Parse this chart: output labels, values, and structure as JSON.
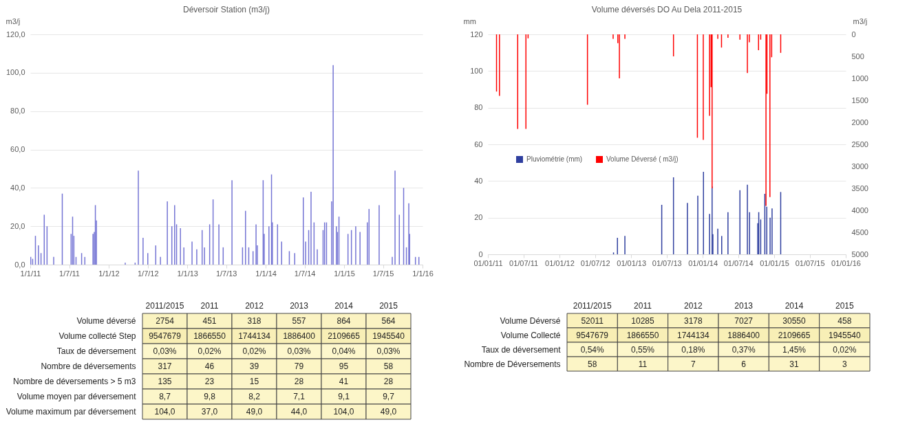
{
  "chart_data": [
    {
      "type": "bar",
      "title": "Déversoir Station (m3/j)",
      "ylabel": "m3/j",
      "grid": "y",
      "xlim": [
        "2011-01-01",
        "2016-01-01"
      ],
      "xticks": [
        {
          "value": "2011-01-01",
          "label": "1/1/11"
        },
        {
          "value": "2011-07-01",
          "label": "1/7/11"
        },
        {
          "value": "2012-01-01",
          "label": "1/1/12"
        },
        {
          "value": "2012-07-01",
          "label": "1/7/12"
        },
        {
          "value": "2013-01-01",
          "label": "1/1/13"
        },
        {
          "value": "2013-07-01",
          "label": "1/7/13"
        },
        {
          "value": "2014-01-01",
          "label": "1/1/14"
        },
        {
          "value": "2014-07-01",
          "label": "1/7/14"
        },
        {
          "value": "2015-01-01",
          "label": "1/1/15"
        },
        {
          "value": "2015-07-01",
          "label": "1/7/15"
        },
        {
          "value": "2016-01-01",
          "label": "1/1/16"
        }
      ],
      "ylim": [
        0,
        120
      ],
      "yticks": [
        {
          "value": 0,
          "label": "0,0"
        },
        {
          "value": 20,
          "label": "20,0"
        },
        {
          "value": 40,
          "label": "40,0"
        },
        {
          "value": 60,
          "label": "60,0"
        },
        {
          "value": 80,
          "label": "80,0"
        },
        {
          "value": 100,
          "label": "100,0"
        },
        {
          "value": 120,
          "label": "120,0"
        }
      ],
      "series": [
        {
          "color": "#7474d4",
          "x": [
            "2011-01-03",
            "2011-01-12",
            "2011-01-25",
            "2011-02-08",
            "2011-02-20",
            "2011-03-07",
            "2011-03-20",
            "2011-04-20",
            "2011-05-30",
            "2011-07-10",
            "2011-07-17",
            "2011-07-23",
            "2011-08-02",
            "2011-08-28",
            "2011-09-12",
            "2011-10-20",
            "2011-10-26",
            "2011-10-31",
            "2011-11-05",
            "2012-03-18",
            "2012-05-03",
            "2012-05-18",
            "2012-06-09",
            "2012-07-01",
            "2012-08-07",
            "2012-08-29",
            "2012-09-30",
            "2012-10-21",
            "2012-11-03",
            "2012-11-12",
            "2012-11-30",
            "2012-12-16",
            "2013-01-23",
            "2013-02-14",
            "2013-03-11",
            "2013-03-22",
            "2013-04-15",
            "2013-05-01",
            "2013-05-28",
            "2013-06-17",
            "2013-07-28",
            "2013-09-15",
            "2013-09-29",
            "2013-10-14",
            "2013-11-03",
            "2013-11-17",
            "2013-11-23",
            "2013-12-20",
            "2013-12-25",
            "2014-01-16",
            "2014-01-28",
            "2014-02-01",
            "2014-02-25",
            "2014-03-16",
            "2014-04-21",
            "2014-05-16",
            "2014-06-25",
            "2014-07-06",
            "2014-07-20",
            "2014-07-31",
            "2014-08-14",
            "2014-08-29",
            "2014-09-25",
            "2014-10-02",
            "2014-10-11",
            "2014-11-04",
            "2014-11-11",
            "2014-11-26",
            "2014-12-01",
            "2014-12-08",
            "2015-01-19",
            "2015-02-04",
            "2015-02-24",
            "2015-03-16",
            "2015-04-19",
            "2015-04-27",
            "2015-06-13",
            "2015-08-13",
            "2015-08-26",
            "2015-09-15",
            "2015-10-05",
            "2015-10-18",
            "2015-10-29",
            "2015-11-02",
            "2015-11-29",
            "2015-12-15"
          ],
          "values": [
            4,
            3,
            15,
            10,
            6,
            26,
            20,
            4,
            37,
            16,
            25,
            15,
            4,
            6,
            4,
            16,
            17,
            31,
            23,
            1,
            1,
            49,
            14,
            6,
            10,
            4,
            33,
            20,
            31,
            21,
            19,
            9,
            12,
            8,
            18,
            9,
            21,
            34,
            21,
            9,
            44,
            9,
            28,
            9,
            7,
            21,
            10,
            44,
            16,
            20,
            47,
            22,
            21,
            12,
            7,
            6,
            35,
            12,
            18,
            38,
            22,
            8,
            18,
            22,
            22,
            33,
            104,
            20,
            17,
            25,
            16,
            18,
            20,
            17,
            22,
            29,
            31,
            4,
            49,
            26,
            40,
            9,
            32,
            16,
            4,
            4
          ]
        }
      ]
    },
    {
      "type": "bar",
      "title": "Volume déversés DO Au Dela 2011-2015",
      "ylabel": "mm",
      "y2label": "m3/j",
      "grid": "y",
      "legend": "left",
      "xlim": [
        "2011-01-01",
        "2016-01-01"
      ],
      "xticks": [
        {
          "value": "2011-01-01",
          "label": "01/01/11"
        },
        {
          "value": "2011-07-01",
          "label": "01/07/11"
        },
        {
          "value": "2012-01-01",
          "label": "01/01/12"
        },
        {
          "value": "2012-07-01",
          "label": "01/07/12"
        },
        {
          "value": "2013-01-01",
          "label": "01/01/13"
        },
        {
          "value": "2013-07-01",
          "label": "01/07/13"
        },
        {
          "value": "2014-01-01",
          "label": "01/01/14"
        },
        {
          "value": "2014-07-01",
          "label": "01/07/14"
        },
        {
          "value": "2015-01-01",
          "label": "01/01/15"
        },
        {
          "value": "2015-07-01",
          "label": "01/07/15"
        },
        {
          "value": "2016-01-01",
          "label": "01/01/16"
        }
      ],
      "ylim": [
        0,
        120
      ],
      "yticks": [
        0,
        20,
        40,
        60,
        80,
        100,
        120
      ],
      "y2lim": [
        5000,
        0
      ],
      "y2ticks": [
        0,
        500,
        1000,
        1500,
        2000,
        2500,
        3000,
        3500,
        4000,
        4500,
        5000
      ],
      "series": [
        {
          "name": "Pluviométrie (mm)",
          "color": "#2f3f9f",
          "x": [
            "2012-10-03",
            "2012-10-23",
            "2012-11-30",
            "2013-06-06",
            "2013-08-05",
            "2013-10-15",
            "2013-12-07",
            "2014-01-05",
            "2014-02-05",
            "2014-02-18",
            "2014-02-22",
            "2014-03-19",
            "2014-04-08",
            "2014-05-10",
            "2014-07-10",
            "2014-08-17",
            "2014-08-28",
            "2014-10-09",
            "2014-10-14",
            "2014-10-24",
            "2014-11-14",
            "2014-11-24",
            "2014-12-11",
            "2014-12-21",
            "2015-02-03"
          ],
          "values": [
            1,
            9,
            10,
            27,
            42,
            28,
            32,
            45,
            22,
            37,
            11,
            14,
            10,
            23,
            35,
            38,
            23,
            17,
            23,
            19,
            33,
            26,
            20,
            25,
            34
          ]
        },
        {
          "name": "Volume Déversé ( m3/j)",
          "color": "#ff0000",
          "axis": "y2",
          "x": [
            "2011-02-14",
            "2011-03-01",
            "2011-06-02",
            "2011-07-14",
            "2011-07-25",
            "2012-05-23",
            "2012-10-01",
            "2012-10-25",
            "2012-11-02",
            "2012-11-30",
            "2013-08-05",
            "2013-12-05",
            "2014-01-04",
            "2014-02-05",
            "2014-02-13",
            "2014-02-18",
            "2014-03-19",
            "2014-04-07",
            "2014-05-10",
            "2014-07-10",
            "2014-08-17",
            "2014-08-27",
            "2014-10-13",
            "2014-10-24",
            "2014-11-20",
            "2014-11-25",
            "2014-12-10",
            "2014-12-19",
            "2015-02-03"
          ],
          "values": [
            1300,
            1400,
            2150,
            2150,
            90,
            1600,
            100,
            200,
            1000,
            100,
            500,
            2350,
            2400,
            1850,
            1200,
            3500,
            100,
            300,
            80,
            120,
            880,
            180,
            360,
            120,
            3900,
            1350,
            3700,
            520,
            420
          ]
        }
      ]
    },
    {
      "type": "heatmap",
      "categories": [
        "2011/2015",
        "2011",
        "2012",
        "2013",
        "2014",
        "2015"
      ],
      "y_categories": [
        "Volume déversé",
        "Volume collecté Step",
        "Taux de déversement",
        "Nombre de déversements",
        "Nombre de déversements > 5 m3",
        "Volume moyen par déversement",
        "Volume maximum par déversement"
      ],
      "cells": [
        [
          2754,
          451,
          318,
          557,
          864,
          564
        ],
        [
          9547679,
          1866550,
          1744134,
          1886400,
          2109665,
          1945540
        ],
        [
          0.03,
          0.02,
          0.02,
          0.03,
          0.04,
          0.03
        ],
        [
          317,
          46,
          39,
          79,
          95,
          58
        ],
        [
          135,
          23,
          15,
          28,
          41,
          28
        ],
        [
          8.7,
          9.8,
          8.2,
          7.1,
          9.1,
          9.7
        ],
        [
          104,
          37,
          49,
          44,
          104,
          49
        ]
      ],
      "cell_labels": [
        [
          "2754",
          "451",
          "318",
          "557",
          "864",
          "564"
        ],
        [
          "9547679",
          "1866550",
          "1744134",
          "1886400",
          "2109665",
          "1945540"
        ],
        [
          "0,03%",
          "0,02%",
          "0,02%",
          "0,03%",
          "0,04%",
          "0,03%"
        ],
        [
          "317",
          "46",
          "39",
          "79",
          "95",
          "58"
        ],
        [
          "135",
          "23",
          "15",
          "28",
          "41",
          "28"
        ],
        [
          "8,7",
          "9,8",
          "8,2",
          "7,1",
          "9,1",
          "9,7"
        ],
        [
          "104,0",
          "37,0",
          "49,0",
          "44,0",
          "104,0",
          "49,0"
        ]
      ]
    },
    {
      "type": "heatmap",
      "categories": [
        "2011/2015",
        "2011",
        "2012",
        "2013",
        "2014",
        "2015"
      ],
      "y_categories": [
        "Volume Déversé",
        "Volume Collecté",
        "Taux de déversement",
        "Nombre de Déversements"
      ],
      "cells": [
        [
          52011,
          10285,
          3178,
          7027,
          30550,
          458
        ],
        [
          9547679,
          1866550,
          1744134,
          1886400,
          2109665,
          1945540
        ],
        [
          0.54,
          0.55,
          0.18,
          0.37,
          1.45,
          0.02
        ],
        [
          58,
          11,
          7,
          6,
          31,
          3
        ]
      ],
      "cell_labels": [
        [
          "52011",
          "10285",
          "3178",
          "7027",
          "30550",
          "458"
        ],
        [
          "9547679",
          "1866550",
          "1744134",
          "1886400",
          "2109665",
          "1945540"
        ],
        [
          "0,54%",
          "0,55%",
          "0,18%",
          "0,37%",
          "1,45%",
          "0,02%"
        ],
        [
          "58",
          "11",
          "7",
          "6",
          "31",
          "3"
        ]
      ]
    }
  ]
}
